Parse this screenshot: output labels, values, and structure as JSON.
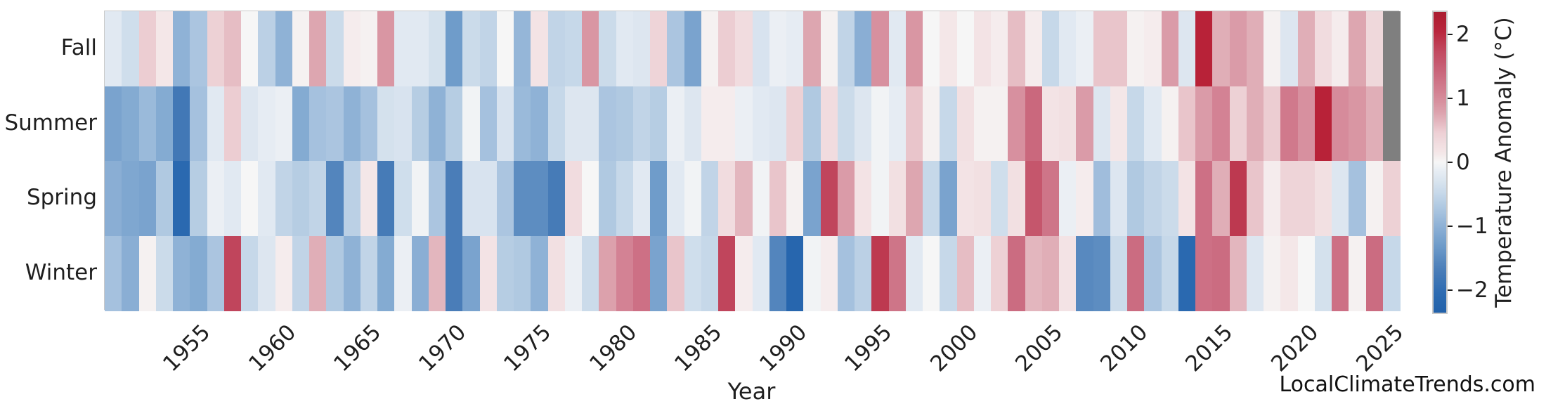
{
  "watermark": "LocalClimateTrends.com",
  "axes": {
    "x_label": "Year",
    "x_tick_years": [
      1955,
      1960,
      1965,
      1970,
      1975,
      1980,
      1985,
      1990,
      1995,
      2000,
      2005,
      2010,
      2015,
      2020,
      2025
    ],
    "row_labels": [
      "Fall",
      "Summer",
      "Spring",
      "Winter"
    ]
  },
  "colorbar": {
    "label": "Temperature Anomaly (°C)",
    "tick_labels": [
      "2",
      "1",
      "0",
      "−1",
      "−2"
    ],
    "tick_values": [
      2,
      1,
      0,
      -1,
      -2
    ],
    "vmin": -2.37,
    "vmax": 2.37
  },
  "colors": {
    "missing_cell": "#7f7f7f",
    "frame": "#c9c9c9",
    "text": "#1f1f1f",
    "background": "#ffffff",
    "diverging_anchors": [
      [
        -2.4,
        "#2160a9"
      ],
      [
        -2.1,
        "#2a69b0"
      ],
      [
        -1.7,
        "#4a7db8"
      ],
      [
        -1.3,
        "#6f9cca"
      ],
      [
        -1.0,
        "#8fb2d6"
      ],
      [
        -0.5,
        "#c6d8e9"
      ],
      [
        -0.15,
        "#e6ecf3"
      ],
      [
        0.0,
        "#f6f6f6"
      ],
      [
        0.15,
        "#f4e7e8"
      ],
      [
        0.5,
        "#eccdd2"
      ],
      [
        0.75,
        "#dda6b0"
      ],
      [
        1.0,
        "#d68b9b"
      ],
      [
        1.35,
        "#cb6c81"
      ],
      [
        1.8,
        "#c0455c"
      ],
      [
        2.1,
        "#b82238"
      ],
      [
        2.4,
        "#a81c30"
      ]
    ]
  },
  "chart_data": {
    "type": "heatmap",
    "title": "",
    "xlabel": "Year",
    "ylabel": "",
    "value_unit": "Temperature Anomaly (°C)",
    "x_range": [
      1950,
      2025
    ],
    "color_range": [
      -2.37,
      2.37
    ],
    "legend_position": "right-colorbar",
    "grid": false,
    "missing_value": null,
    "x": [
      1950,
      1951,
      1952,
      1953,
      1954,
      1955,
      1956,
      1957,
      1958,
      1959,
      1960,
      1961,
      1962,
      1963,
      1964,
      1965,
      1966,
      1967,
      1968,
      1969,
      1970,
      1971,
      1972,
      1973,
      1974,
      1975,
      1976,
      1977,
      1978,
      1979,
      1980,
      1981,
      1982,
      1983,
      1984,
      1985,
      1986,
      1987,
      1988,
      1989,
      1990,
      1991,
      1992,
      1993,
      1994,
      1995,
      1996,
      1997,
      1998,
      1999,
      2000,
      2001,
      2002,
      2003,
      2004,
      2005,
      2006,
      2007,
      2008,
      2009,
      2010,
      2011,
      2012,
      2013,
      2014,
      2015,
      2016,
      2017,
      2018,
      2019,
      2020,
      2021,
      2022,
      2023,
      2024,
      2025
    ],
    "rows": [
      "Fall",
      "Summer",
      "Spring",
      "Winter"
    ],
    "series": [
      {
        "name": "Fall",
        "values": [
          -0.2,
          -0.4,
          0.5,
          0.15,
          -1.0,
          -0.75,
          0.45,
          0.6,
          0.0,
          -0.6,
          -1.0,
          0.05,
          0.75,
          -0.45,
          0.1,
          0.05,
          0.9,
          -0.2,
          -0.2,
          -0.35,
          -1.3,
          -0.45,
          -0.55,
          0.0,
          -0.95,
          0.2,
          -0.55,
          -0.5,
          0.9,
          -0.45,
          -0.2,
          -0.25,
          0.4,
          -0.75,
          -1.2,
          0.05,
          0.5,
          0.3,
          -0.3,
          -0.1,
          -0.15,
          0.75,
          0.05,
          -0.55,
          -1.05,
          0.95,
          -0.2,
          0.9,
          0.0,
          0.15,
          0.0,
          0.2,
          0.1,
          0.6,
          0.1,
          -0.5,
          -0.2,
          -0.1,
          0.55,
          0.55,
          0.05,
          0.1,
          0.85,
          -0.25,
          2.1,
          0.7,
          0.85,
          0.7,
          0.05,
          -0.25,
          0.7,
          0.3,
          0.1,
          0.75,
          0.35,
          null
        ]
      },
      {
        "name": "Summer",
        "values": [
          -1.2,
          -1.1,
          -0.9,
          -1.1,
          -1.8,
          -0.8,
          -0.2,
          0.5,
          -0.25,
          -0.15,
          -0.1,
          -1.1,
          -0.8,
          -0.75,
          -1.0,
          -0.8,
          -0.35,
          -0.3,
          -0.65,
          -1.0,
          -0.65,
          -0.05,
          -0.8,
          -0.3,
          -0.9,
          -1.0,
          -0.5,
          -0.25,
          -0.25,
          -0.75,
          -0.7,
          -0.55,
          -0.65,
          -0.1,
          -0.25,
          0.1,
          0.1,
          -0.1,
          -0.2,
          -0.25,
          0.45,
          -0.7,
          0.3,
          -0.45,
          -0.25,
          -0.05,
          -0.15,
          0.55,
          0.05,
          -0.5,
          0.25,
          0.05,
          0.05,
          0.95,
          1.4,
          0.2,
          0.25,
          0.85,
          -0.25,
          0.15,
          -0.5,
          -0.2,
          0.05,
          0.55,
          0.85,
          1.1,
          0.45,
          0.7,
          0.5,
          1.2,
          0.95,
          2.1,
          1.0,
          0.9,
          0.7,
          null
        ]
      },
      {
        "name": "Spring",
        "values": [
          -1.05,
          -1.15,
          -1.2,
          -0.7,
          -2.1,
          -0.65,
          -0.1,
          -0.2,
          0.0,
          -0.2,
          -0.55,
          -0.65,
          -0.55,
          -1.6,
          -0.6,
          0.15,
          -1.75,
          -0.4,
          -0.05,
          -0.75,
          -1.7,
          -0.3,
          -0.3,
          -0.75,
          -1.5,
          -1.5,
          -1.75,
          0.3,
          0.0,
          -0.7,
          -0.5,
          -0.2,
          -1.3,
          -0.2,
          -0.05,
          -0.55,
          0.3,
          0.65,
          -0.05,
          0.55,
          0.05,
          -1.2,
          1.8,
          0.85,
          0.2,
          -0.05,
          0.25,
          0.75,
          -0.5,
          -1.2,
          0.2,
          0.25,
          -0.4,
          0.25,
          1.6,
          1.25,
          -0.1,
          0.1,
          -0.85,
          -0.25,
          -0.7,
          -0.55,
          -0.45,
          0.2,
          1.3,
          0.7,
          1.9,
          0.55,
          0.1,
          0.4,
          0.4,
          0.25,
          -0.25,
          -0.8,
          0.05,
          0.45
        ]
      },
      {
        "name": "Winter",
        "values": [
          -0.8,
          -1.05,
          0.05,
          -0.45,
          -1.0,
          -1.1,
          -0.75,
          1.8,
          -0.5,
          -0.25,
          0.1,
          -0.55,
          0.7,
          -0.7,
          -1.0,
          -0.55,
          -1.1,
          -0.1,
          -1.05,
          0.65,
          -1.7,
          -1.2,
          0.2,
          -0.65,
          -0.7,
          -1.0,
          0.25,
          -0.1,
          -0.45,
          0.8,
          1.1,
          1.3,
          -1.2,
          0.55,
          -0.4,
          -0.5,
          1.8,
          0.1,
          -0.2,
          -1.6,
          -2.2,
          -0.05,
          0.1,
          -0.8,
          -0.6,
          1.9,
          1.25,
          -0.2,
          0.0,
          -0.5,
          0.6,
          -0.1,
          0.45,
          1.35,
          0.65,
          0.7,
          0.2,
          -1.55,
          -1.5,
          -0.45,
          1.35,
          -0.75,
          -0.5,
          -2.1,
          1.3,
          1.35,
          0.65,
          -0.25,
          0.05,
          0.15,
          0.0,
          -0.35,
          1.3,
          0.05,
          1.35,
          -0.5
        ]
      }
    ]
  }
}
